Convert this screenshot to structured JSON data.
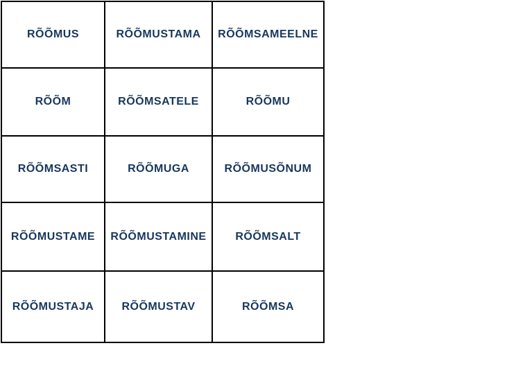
{
  "word_grid": {
    "rows": [
      {
        "cells": [
          "RÕÕMUS",
          "RÕÕMUSTAMA",
          "RÕÕMSAMEELNE"
        ]
      },
      {
        "cells": [
          "RÕÕM",
          "RÕÕMSATELE",
          "RÕÕMU"
        ]
      },
      {
        "cells": [
          "RÕÕMSASTI",
          "RÕÕMUGA",
          "RÕÕMUSÕNUM"
        ]
      },
      {
        "cells": [
          "RÕÕMUSTAME",
          "RÕÕMUSTAMINE",
          "RÕÕMSALT"
        ]
      },
      {
        "cells": [
          "RÕÕMUSTAJA",
          "RÕÕMUSTAV",
          "RÕÕMSA"
        ]
      }
    ]
  },
  "colors": {
    "text": "#17375E",
    "border": "#000000",
    "background": "#FFFFFF"
  }
}
